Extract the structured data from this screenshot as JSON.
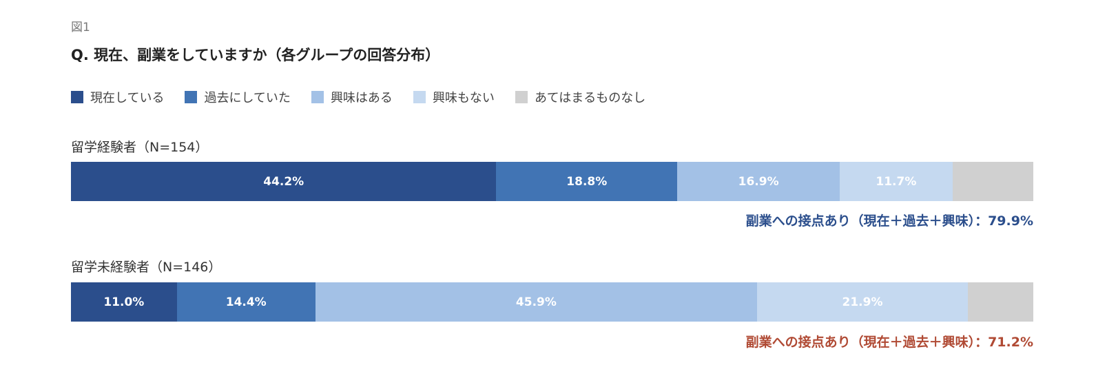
{
  "figure_label": "図1",
  "title": "Q. 現在、副業をしていますか（各グループの回答分布）",
  "chart_data": {
    "type": "bar",
    "orientation": "horizontal",
    "stacked": true,
    "title": "Q. 現在、副業をしていますか（各グループの回答分布）",
    "categories": [
      "留学経験者（N=154）",
      "留学未経験者（N=146）"
    ],
    "series": [
      {
        "name": "現在している",
        "color": "#2b4e8c",
        "values": [
          44.2,
          11.0
        ],
        "labels": [
          "44.2%",
          "11.0%"
        ]
      },
      {
        "name": "過去にしていた",
        "color": "#4174b4",
        "values": [
          18.8,
          14.4
        ],
        "labels": [
          "18.8%",
          "14.4%"
        ]
      },
      {
        "name": "興味はある",
        "color": "#a3c1e6",
        "values": [
          16.9,
          45.9
        ],
        "labels": [
          "16.9%",
          "45.9%"
        ]
      },
      {
        "name": "興味もない",
        "color": "#c5d9f0",
        "values": [
          11.7,
          21.9
        ],
        "labels": [
          "11.7%",
          "21.9%"
        ]
      },
      {
        "name": "あてはまるものなし",
        "color": "#d0d0d0",
        "values": [
          8.4,
          6.8
        ],
        "labels": [
          "",
          ""
        ]
      }
    ],
    "xlim": [
      0,
      100
    ],
    "legend_position": "top-left",
    "summaries": [
      {
        "text": "副業への接点あり（現在＋過去＋興味）：79.9%",
        "color": "#2b4e8c"
      },
      {
        "text": "副業への接点あり（現在＋過去＋興味）：71.2%",
        "color": "#b04a34"
      }
    ]
  }
}
